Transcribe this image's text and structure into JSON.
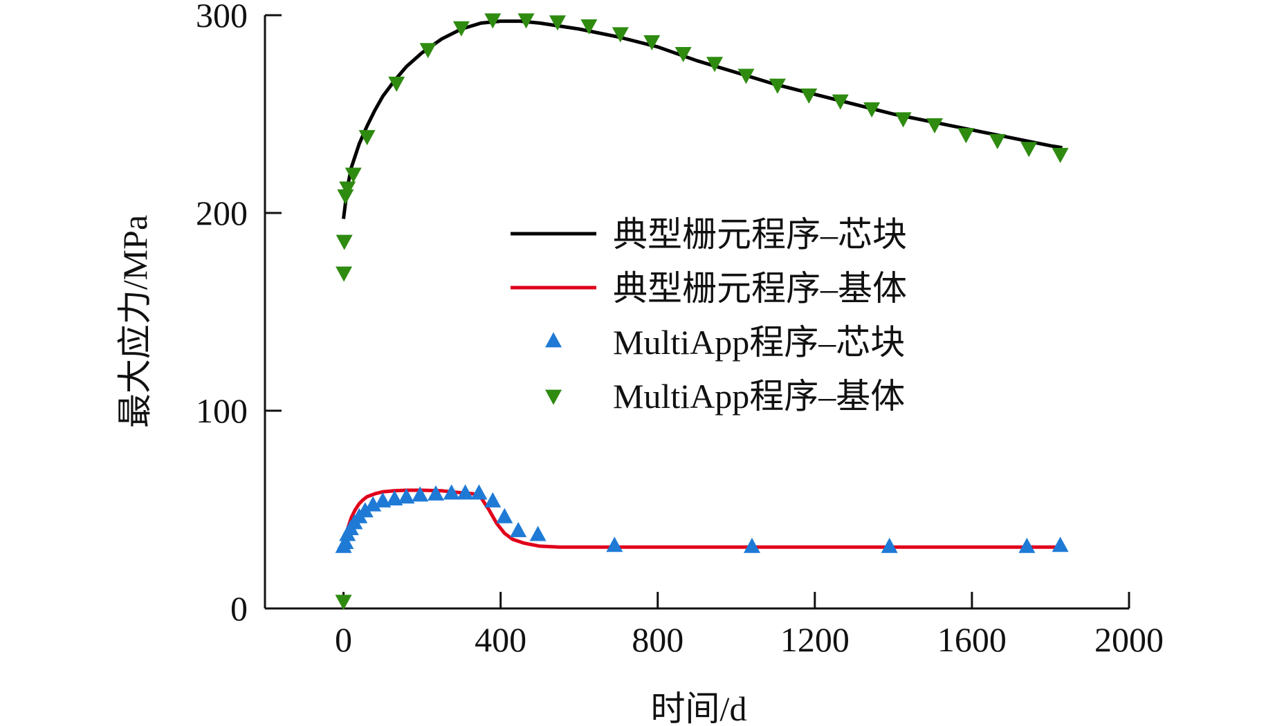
{
  "chart_data": {
    "type": "line",
    "title": "",
    "xlabel": "时间/d",
    "ylabel": "最大应力/MPa",
    "xlim": [
      -200,
      2000
    ],
    "ylim": [
      0,
      300
    ],
    "xticks": [
      0,
      400,
      800,
      1200,
      1600,
      2000
    ],
    "yticks": [
      0,
      100,
      200,
      300
    ],
    "grid": false,
    "legend_position": "center-right",
    "series": [
      {
        "name": "典型栅元程序–芯块",
        "kind": "line",
        "color": "#000000",
        "x": [
          0,
          10,
          20,
          40,
          60,
          80,
          100,
          130,
          160,
          200,
          250,
          300,
          350,
          400,
          450,
          500,
          600,
          700,
          800,
          900,
          1000,
          1100,
          1200,
          1300,
          1400,
          1500,
          1600,
          1700,
          1800,
          1830
        ],
        "y": [
          197,
          213,
          223,
          235,
          244,
          252,
          259,
          267,
          274,
          281,
          288,
          293,
          296,
          297,
          297,
          296,
          293,
          289,
          284,
          277,
          271,
          265,
          260,
          255,
          250,
          246,
          242,
          238,
          234,
          233
        ]
      },
      {
        "name": "典型栅元程序–基体",
        "kind": "line",
        "color": "#e0001b",
        "x": [
          0,
          10,
          20,
          30,
          40,
          50,
          60,
          80,
          100,
          130,
          160,
          200,
          250,
          300,
          330,
          350,
          370,
          390,
          410,
          430,
          460,
          500,
          550,
          600,
          800,
          1200,
          1600,
          1830
        ],
        "y": [
          32,
          40,
          46,
          50,
          53,
          55,
          56.5,
          58,
          59,
          59.5,
          59.8,
          59.8,
          59.5,
          58.5,
          58,
          56,
          50,
          43,
          38,
          35,
          33,
          31.5,
          31,
          31,
          31,
          31,
          31,
          31
        ]
      },
      {
        "name": "MultiApp程序–芯块",
        "kind": "scatter",
        "marker": "triangle-up",
        "color": "#1f7ad6",
        "x": [
          0,
          5,
          10,
          18,
          28,
          40,
          55,
          75,
          100,
          130,
          160,
          195,
          235,
          275,
          310,
          345,
          380,
          410,
          445,
          495,
          690,
          1040,
          1390,
          1740,
          1825
        ],
        "y": [
          31,
          33,
          37,
          40,
          43,
          46,
          49,
          52,
          54,
          55,
          56,
          57,
          57.5,
          58,
          58,
          58,
          54,
          46,
          39,
          37,
          31.5,
          31,
          31,
          31,
          31.5
        ]
      },
      {
        "name": "MultiApp程序–基体",
        "kind": "scatter",
        "marker": "triangle-down",
        "color": "#2e8b10",
        "x": [
          0,
          1,
          2,
          5,
          10,
          25,
          60,
          135,
          215,
          300,
          380,
          465,
          545,
          625,
          705,
          785,
          865,
          945,
          1025,
          1105,
          1185,
          1265,
          1345,
          1425,
          1505,
          1585,
          1665,
          1745,
          1825
        ],
        "y": [
          4,
          170,
          186,
          209,
          213,
          220,
          239,
          266,
          283,
          294,
          298,
          298,
          297,
          295,
          291,
          287,
          281,
          276,
          270,
          265,
          260,
          257,
          253,
          248,
          245,
          240,
          237,
          233,
          230
        ]
      }
    ]
  }
}
